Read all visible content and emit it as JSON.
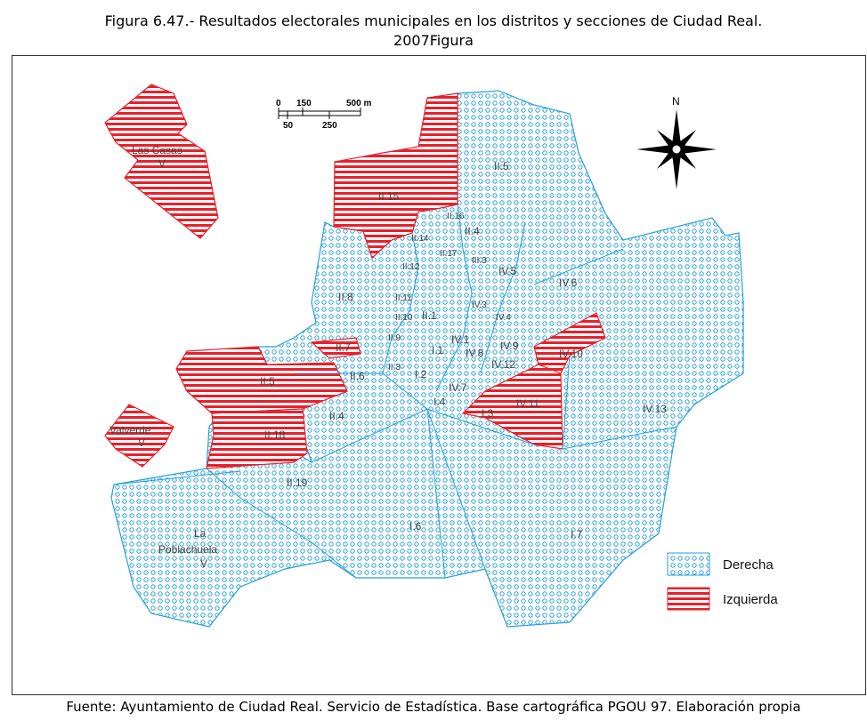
{
  "title_line1": "Figura 6.47.- Resultados electorales municipales en los distritos y secciones de Ciudad Real.",
  "title_line2": "2007Figura",
  "source": "Fuente: Ayuntamiento de Ciudad Real. Servicio de Estadística. Base cartográfica PGOU 97. Elaboración propia",
  "legend": [
    {
      "label": "Derecha",
      "pattern": "dots"
    },
    {
      "label": "Izquierda",
      "pattern": "stripes"
    }
  ],
  "scale": {
    "top": [
      "0",
      "150",
      "500 m"
    ],
    "bottom": [
      "50",
      "250"
    ]
  },
  "north": "N",
  "colors": {
    "derecha": "#2aa0d8",
    "izquierda": "#e8202a",
    "frame": "#333333"
  },
  "sections": {
    "las_casas": "Las Casas",
    "las_casas_v": "V",
    "valverde": "Valverde",
    "valverde_v": "V",
    "la": "La",
    "poblachuela": "Poblachuela",
    "poblachuela_v": "V",
    "ii15": "II.15",
    "ii5": "II.5",
    "ii4": "II.4",
    "ii8": "II.8",
    "ii7": "II.7",
    "ii9": "II.9",
    "ii6": "II.6",
    "ii18": "II.18",
    "ii19": "II.19",
    "i4_left": "I.4",
    "i6": "I.6",
    "i7": "I.7",
    "iv6": "IV.6",
    "iv5": "IV.5",
    "iv1": "IV.1",
    "iv9": "IV.9",
    "iv8": "IV.8",
    "iv12": "IV.12",
    "iv10": "IV.10",
    "iv11": "IV.11",
    "iv13": "IV.13",
    "iv7": "IV.7",
    "i3": "I.3",
    "i4": "I.4",
    "i1": "I.1",
    "i2": "I.2",
    "ii1": "II.1",
    "ii12": "II.12",
    "ii14": "II.14",
    "ii17": "II.17",
    "ii10": "II.10",
    "ii11": "II.11",
    "ii16": "II.16",
    "iii3": "III.3",
    "iv3": "IV.3",
    "iv4": "IV.4",
    "ii3": "II.3"
  }
}
